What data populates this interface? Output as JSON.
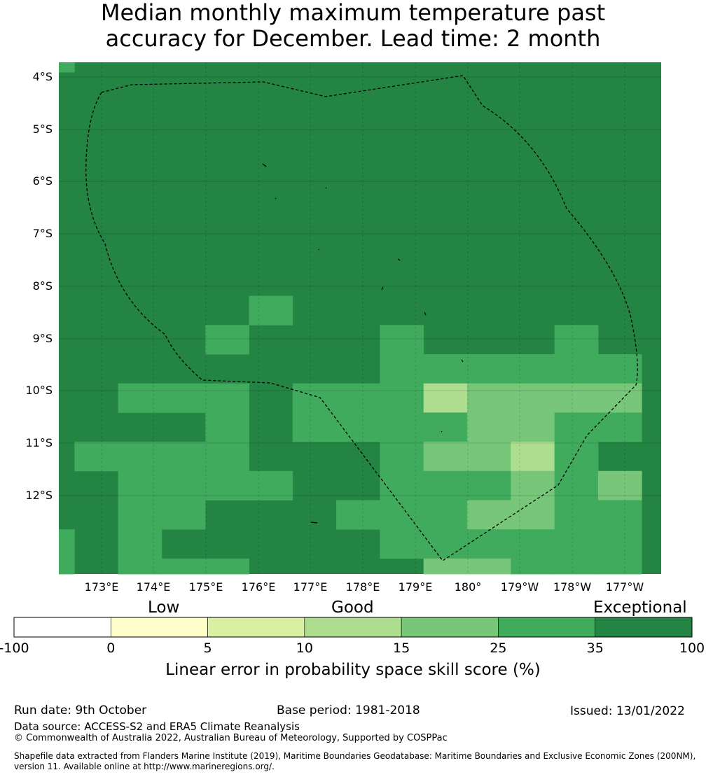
{
  "title": {
    "line1": "Median monthly maximum temperature past",
    "line2": "accuracy for December. Lead time: 2 month"
  },
  "map": {
    "lat_labels": [
      "4°S",
      "5°S",
      "6°S",
      "7°S",
      "8°S",
      "9°S",
      "10°S",
      "11°S",
      "12°S"
    ],
    "lon_labels": [
      "173°E",
      "174°E",
      "175°E",
      "176°E",
      "177°E",
      "178°E",
      "179°E",
      "180°",
      "179°W",
      "178°W",
      "177°W"
    ],
    "ocean_value": 35,
    "cells": [
      {
        "row": 0,
        "col": 0,
        "v": 25
      },
      {
        "row": 8,
        "col": 5,
        "v": 25
      },
      {
        "row": 9,
        "col": 4,
        "v": 25
      },
      {
        "row": 9,
        "col": 8,
        "v": 25
      },
      {
        "row": 9,
        "col": 12,
        "v": 25
      },
      {
        "row": 10,
        "col": 8,
        "v": 25
      },
      {
        "row": 10,
        "col": 9,
        "v": 25
      },
      {
        "row": 10,
        "col": 10,
        "v": 25
      },
      {
        "row": 10,
        "col": 11,
        "v": 25
      },
      {
        "row": 10,
        "col": 12,
        "v": 25
      },
      {
        "row": 10,
        "col": 13,
        "v": 25
      },
      {
        "row": 11,
        "col": 2,
        "v": 25
      },
      {
        "row": 11,
        "col": 3,
        "v": 25
      },
      {
        "row": 11,
        "col": 4,
        "v": 25
      },
      {
        "row": 11,
        "col": 6,
        "v": 25
      },
      {
        "row": 11,
        "col": 7,
        "v": 25
      },
      {
        "row": 11,
        "col": 8,
        "v": 25
      },
      {
        "row": 11,
        "col": 9,
        "v": 10
      },
      {
        "row": 11,
        "col": 10,
        "v": 15
      },
      {
        "row": 11,
        "col": 11,
        "v": 15
      },
      {
        "row": 11,
        "col": 12,
        "v": 15
      },
      {
        "row": 11,
        "col": 13,
        "v": 15
      },
      {
        "row": 12,
        "col": 4,
        "v": 25
      },
      {
        "row": 12,
        "col": 6,
        "v": 25
      },
      {
        "row": 12,
        "col": 7,
        "v": 25
      },
      {
        "row": 12,
        "col": 8,
        "v": 25
      },
      {
        "row": 12,
        "col": 9,
        "v": 25
      },
      {
        "row": 12,
        "col": 10,
        "v": 15
      },
      {
        "row": 12,
        "col": 11,
        "v": 15
      },
      {
        "row": 12,
        "col": 12,
        "v": 25
      },
      {
        "row": 12,
        "col": 13,
        "v": 25
      },
      {
        "row": 13,
        "col": 1,
        "v": 25
      },
      {
        "row": 13,
        "col": 2,
        "v": 25
      },
      {
        "row": 13,
        "col": 3,
        "v": 25
      },
      {
        "row": 13,
        "col": 4,
        "v": 25
      },
      {
        "row": 13,
        "col": 8,
        "v": 25
      },
      {
        "row": 13,
        "col": 9,
        "v": 15
      },
      {
        "row": 13,
        "col": 10,
        "v": 15
      },
      {
        "row": 13,
        "col": 11,
        "v": 10
      },
      {
        "row": 13,
        "col": 12,
        "v": 25
      },
      {
        "row": 14,
        "col": 2,
        "v": 25
      },
      {
        "row": 14,
        "col": 3,
        "v": 25
      },
      {
        "row": 14,
        "col": 4,
        "v": 25
      },
      {
        "row": 14,
        "col": 5,
        "v": 25
      },
      {
        "row": 14,
        "col": 8,
        "v": 25
      },
      {
        "row": 14,
        "col": 9,
        "v": 25
      },
      {
        "row": 14,
        "col": 10,
        "v": 25
      },
      {
        "row": 14,
        "col": 11,
        "v": 15
      },
      {
        "row": 14,
        "col": 12,
        "v": 25
      },
      {
        "row": 14,
        "col": 13,
        "v": 15
      },
      {
        "row": 15,
        "col": 2,
        "v": 25
      },
      {
        "row": 15,
        "col": 3,
        "v": 25
      },
      {
        "row": 15,
        "col": 7,
        "v": 25
      },
      {
        "row": 15,
        "col": 8,
        "v": 25
      },
      {
        "row": 15,
        "col": 9,
        "v": 25
      },
      {
        "row": 15,
        "col": 10,
        "v": 15
      },
      {
        "row": 15,
        "col": 11,
        "v": 15
      },
      {
        "row": 15,
        "col": 12,
        "v": 25
      },
      {
        "row": 15,
        "col": 13,
        "v": 25
      },
      {
        "row": 16,
        "col": 0,
        "v": 25
      },
      {
        "row": 16,
        "col": 2,
        "v": 25
      },
      {
        "row": 16,
        "col": 8,
        "v": 25
      },
      {
        "row": 16,
        "col": 9,
        "v": 25
      },
      {
        "row": 16,
        "col": 10,
        "v": 25
      },
      {
        "row": 16,
        "col": 11,
        "v": 25
      },
      {
        "row": 16,
        "col": 12,
        "v": 25
      },
      {
        "row": 16,
        "col": 13,
        "v": 25
      },
      {
        "row": 17,
        "col": 0,
        "v": 25
      },
      {
        "row": 17,
        "col": 2,
        "v": 25
      },
      {
        "row": 17,
        "col": 3,
        "v": 25
      },
      {
        "row": 17,
        "col": 4,
        "v": 25
      },
      {
        "row": 17,
        "col": 9,
        "v": 15
      },
      {
        "row": 17,
        "col": 10,
        "v": 15
      },
      {
        "row": 17,
        "col": 11,
        "v": 25
      },
      {
        "row": 17,
        "col": 12,
        "v": 25
      },
      {
        "row": 17,
        "col": 13,
        "v": 25
      }
    ]
  },
  "colorbar": {
    "category_labels": [
      "Low",
      "Good",
      "Exceptional"
    ],
    "tick_labels": [
      "-100",
      "0",
      "5",
      "10",
      "15",
      "25",
      "35",
      "100"
    ],
    "colors": [
      "#ffffff",
      "#ffffcc",
      "#d9f0a3",
      "#addd8e",
      "#78c679",
      "#41ab5d",
      "#238443"
    ],
    "title": "Linear error in probability space skill score (%)"
  },
  "footer": {
    "run_date": "Run date: 9th October",
    "base_period": "Base period: 1981-2018",
    "issued": "Issued: 13/01/2022",
    "data_source": "Data source: ACCESS-S2 and ERA5 Climate Reanalysis",
    "copyright": "© Commonwealth of Australia 2022, Australian Bureau of Meteorology, Supported by COSPPac",
    "shapefile_line1": "Shapefile data extracted from Flanders Marine Institute (2019), Maritime Boundaries Geodatabase: Maritime Boundaries and Exclusive Economic Zones (200NM),",
    "shapefile_line2": "version 11. Available online at http://www.marineregions.org/."
  }
}
